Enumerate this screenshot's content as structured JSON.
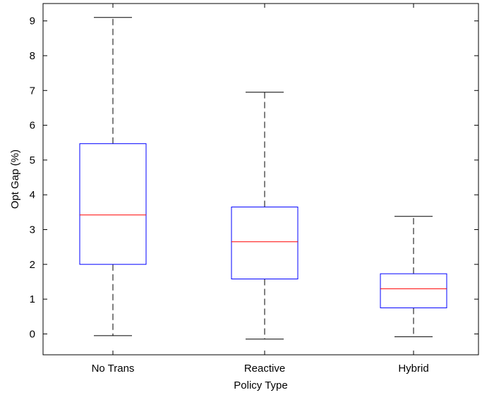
{
  "chart_data": {
    "type": "boxplot",
    "title": "",
    "xlabel": "Policy Type",
    "ylabel": "Opt Gap (%)",
    "ylim": [
      -0.6,
      9.5
    ],
    "yticks": [
      0,
      1,
      2,
      3,
      4,
      5,
      6,
      7,
      8,
      9
    ],
    "ytick_labels": [
      "0",
      "1",
      "2",
      "3",
      "4",
      "5",
      "6",
      "7",
      "8",
      "9"
    ],
    "categories": [
      "No Trans",
      "Reactive",
      "Hybrid"
    ],
    "boxes": [
      {
        "whisker_low": -0.05,
        "q1": 2.0,
        "median": 3.42,
        "q3": 5.47,
        "whisker_high": 9.1
      },
      {
        "whisker_low": -0.15,
        "q1": 1.58,
        "median": 2.65,
        "q3": 3.65,
        "whisker_high": 6.95
      },
      {
        "whisker_low": -0.08,
        "q1": 0.75,
        "median": 1.3,
        "q3": 1.73,
        "whisker_high": 3.38
      }
    ],
    "grid": false,
    "colors": {
      "box": "#0000ff",
      "median": "#ff0000",
      "whisker": "#000000",
      "axis": "#000000"
    }
  }
}
